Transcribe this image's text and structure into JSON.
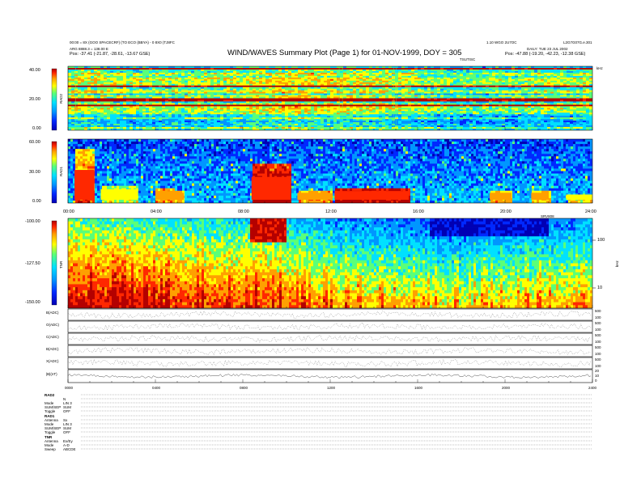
{
  "header": {
    "title": "WIND/WAVES Summary Plot (Page 1) for 01-NOV-1999, DOY = 305",
    "left_line1": "00:00 = 8X (GOO SPACECRF) (TO ECO (BBYA) - 0 8X0 (TJ8FC",
    "left_line2": "ARG 8888.3 = 138.00 E",
    "left_line3": "Pos: -37.41 (-21.87, -28.61, -13.67 GSE)",
    "right_line1a": "1.10 WGO 2U7OC",
    "right_line1b": "L2G7G07G.e.301",
    "right_line2": "DAILY: TUE 23 JUL 2002",
    "right_line3": "Pos: -47.88 (-19.20, -42.23, -12.38 GSE)",
    "tr_label_top": "TSUTISC",
    "tr_label_rh": "kHz"
  },
  "panels": {
    "rad2": {
      "label": "RAD2",
      "ticks": [
        "40.00",
        "20.00",
        "0.00"
      ]
    },
    "rad1": {
      "label": "RAD1",
      "ticks": [
        "60.00",
        "30.00",
        "0.00"
      ]
    },
    "tnr": {
      "label": "TNR",
      "ticks": [
        "-100.00",
        "-127.50",
        "-150.00"
      ],
      "right_ticks": [
        "100",
        "10"
      ],
      "right_label": "kHz"
    }
  },
  "time_axis_top": [
    "00:00",
    "04:00",
    "08:00",
    "12:00",
    "16:00",
    "20:00",
    "24:00"
  ],
  "time_axis_bottom": [
    "0000",
    "0400",
    "0800",
    "1200",
    "1600",
    "2000",
    "2400"
  ],
  "tnr_topright_label": "SRV808",
  "strip_labels": [
    "B(ADC)",
    "O(ADC)",
    "C(ADC)",
    "B(ADC)",
    "X(ADC)",
    "|B|(nT)"
  ],
  "strip_right_ticks": [
    [
      "500",
      "100"
    ],
    [
      "500",
      "100"
    ],
    [
      "500",
      "100"
    ],
    [
      "500",
      "100"
    ],
    [
      "500",
      "100"
    ],
    [
      "20",
      "10",
      "0"
    ]
  ],
  "modes": [
    {
      "name": "RAD2",
      "rows": [
        [
          "",
          "N"
        ],
        [
          "Mode",
          "LIN 3"
        ],
        [
          "SUM/SEP",
          "SUM"
        ],
        [
          "Toggle",
          "OFF"
        ]
      ]
    },
    {
      "name": "RAD1",
      "rows": [
        [
          "Antenna",
          "Sx"
        ],
        [
          "Mode",
          "LIN 3"
        ],
        [
          "SUM/SEP",
          "SUM"
        ],
        [
          "Toggle",
          "OFF"
        ]
      ]
    },
    {
      "name": "TNR",
      "rows": [
        [
          "Antenna",
          "Ex/Ey"
        ],
        [
          "Mode",
          "A-D"
        ],
        [
          "Sweep",
          "ABCDE"
        ]
      ]
    }
  ],
  "colors": {
    "spectrum": [
      "#0000b4",
      "#0028ff",
      "#0096ff",
      "#00e1ff",
      "#5aff78",
      "#ffff00",
      "#ffa000",
      "#ff2800",
      "#b40000"
    ]
  },
  "chart_data": {
    "type": "heatmap",
    "title": "WIND/WAVES Summary Plot (Page 1) for 01-NOV-1999, DOY = 305",
    "x_range_hours": [
      0,
      24
    ],
    "rad2_intensity_profile": [
      [
        0,
        0.35
      ],
      [
        1,
        0.35
      ],
      [
        3,
        0.3
      ],
      [
        6,
        0.3
      ],
      [
        10,
        0.4
      ],
      [
        14,
        0.35
      ],
      [
        18,
        0.25
      ],
      [
        22,
        0.3
      ],
      [
        24,
        0.3
      ]
    ],
    "rad1_bursts": [
      {
        "start_h": 0.3,
        "end_h": 1.2,
        "level": 0.85,
        "height": 0.85
      },
      {
        "start_h": 1.5,
        "end_h": 3.2,
        "level": 0.6,
        "height": 0.3
      },
      {
        "start_h": 4.0,
        "end_h": 4.8,
        "level": 0.75,
        "height": 0.25
      },
      {
        "start_h": 4.6,
        "end_h": 5.3,
        "level": 0.7,
        "height": 0.2
      },
      {
        "start_h": 8.4,
        "end_h": 10.2,
        "level": 1.0,
        "height": 0.65
      },
      {
        "start_h": 10.5,
        "end_h": 12.0,
        "level": 0.75,
        "height": 0.2
      },
      {
        "start_h": 12.2,
        "end_h": 15.6,
        "level": 0.95,
        "height": 0.25
      },
      {
        "start_h": 19.3,
        "end_h": 20.3,
        "level": 0.7,
        "height": 0.2
      },
      {
        "start_h": 21.2,
        "end_h": 22.0,
        "level": 0.7,
        "height": 0.2
      },
      {
        "start_h": 22.8,
        "end_h": 24.0,
        "level": 0.65,
        "height": 0.15
      }
    ],
    "tnr_background": [
      [
        0,
        0.9
      ],
      [
        2,
        0.85
      ],
      [
        4,
        0.8
      ],
      [
        6,
        0.75
      ],
      [
        8,
        0.7
      ],
      [
        9,
        0.75
      ],
      [
        10,
        0.65
      ],
      [
        12,
        0.5
      ],
      [
        14,
        0.45
      ],
      [
        16,
        0.4
      ],
      [
        18,
        0.35
      ],
      [
        20,
        0.4
      ],
      [
        22,
        0.45
      ],
      [
        24,
        0.5
      ]
    ]
  }
}
